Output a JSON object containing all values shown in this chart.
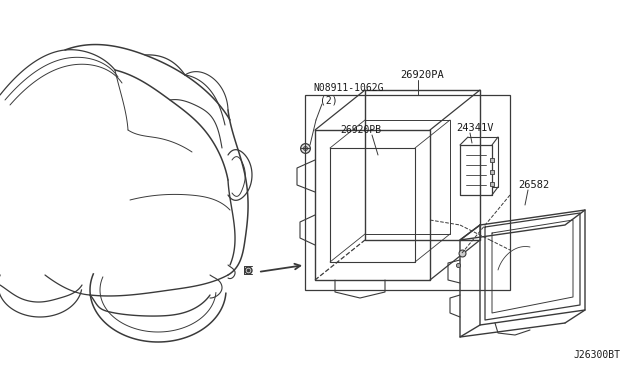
{
  "bg_color": "#ffffff",
  "line_color": "#3a3a3a",
  "text_color": "#1a1a1a",
  "diagram_id": "J26300BT",
  "labels": {
    "nut": "N08911-1062G",
    "nut2": "(2)",
    "part1": "26920PA",
    "part2": "26920PB",
    "part3": "24341V",
    "lamp": "26582"
  }
}
